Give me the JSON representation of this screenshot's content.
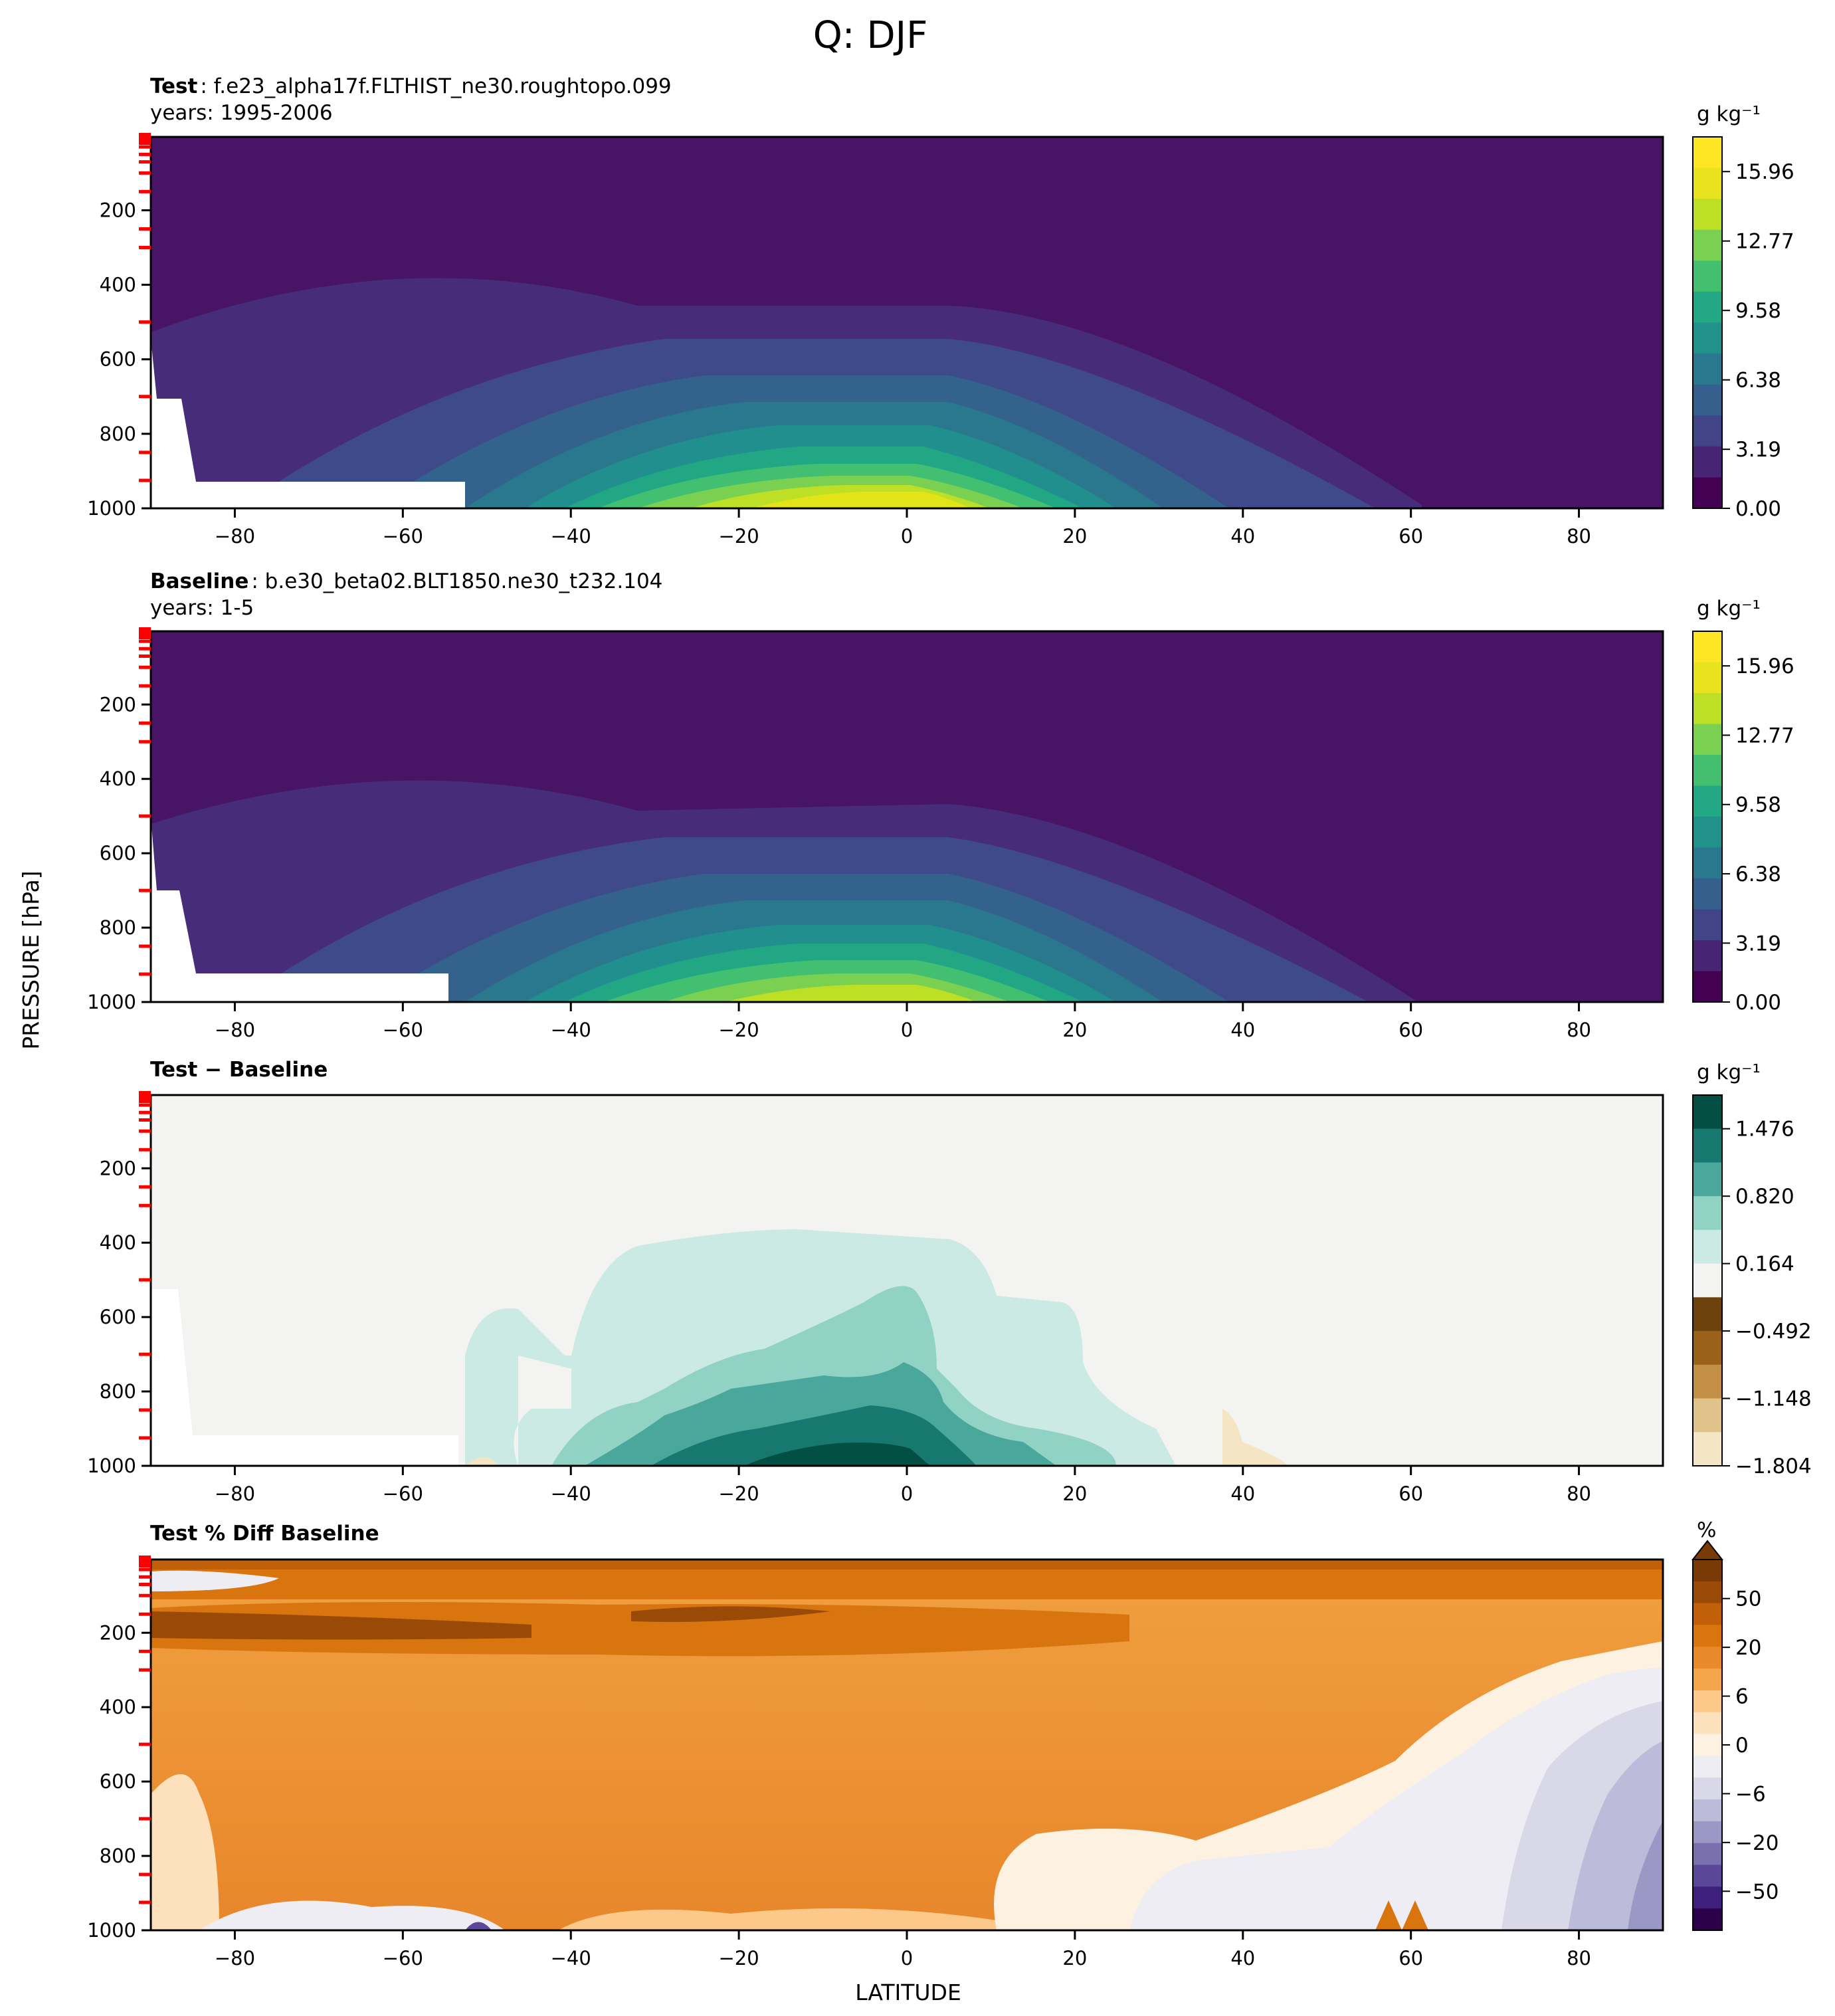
{
  "figure": {
    "title": "Q: DJF",
    "xlabel": "LATITUDE",
    "ylabel": "PRESSURE [hPa]"
  },
  "chart_data": [
    {
      "type": "heatmap",
      "panel": "test",
      "title_bold": "Test",
      "title_rest": ": f.e23_alpha17f.FLTHIST_ne30.roughtopo.099",
      "subtitle": "years: 1995-2006",
      "xlabel": "LATITUDE",
      "ylabel": "PRESSURE [hPa]",
      "xlim": [
        -90,
        90
      ],
      "ylim": [
        1000,
        3
      ],
      "x_ticks": [
        "−80",
        "−60",
        "−40",
        "−20",
        "0",
        "20",
        "40",
        "60",
        "80"
      ],
      "y_ticks": [
        "200",
        "400",
        "600",
        "800",
        "1000"
      ],
      "colormap": "viridis",
      "colorbar_unit": "g kg⁻¹",
      "colorbar_ticks": [
        "15.96",
        "12.77",
        "9.58",
        "6.38",
        "3.19",
        "0.00"
      ],
      "levels": [
        0,
        1.6,
        3.19,
        4.79,
        6.38,
        7.98,
        9.58,
        11.17,
        12.77,
        14.37,
        15.96,
        17.56
      ],
      "peak": {
        "lat": 0,
        "pressure": 1000,
        "value": 16.5
      }
    },
    {
      "type": "heatmap",
      "panel": "baseline",
      "title_bold": "Baseline",
      "title_rest": ": b.e30_beta02.BLT1850.ne30_t232.104",
      "subtitle": "years: 1-5",
      "xlabel": "LATITUDE",
      "ylabel": "PRESSURE [hPa]",
      "xlim": [
        -90,
        90
      ],
      "ylim": [
        1000,
        3
      ],
      "x_ticks": [
        "−80",
        "−60",
        "−40",
        "−20",
        "0",
        "20",
        "40",
        "60",
        "80"
      ],
      "y_ticks": [
        "200",
        "400",
        "600",
        "800",
        "1000"
      ],
      "colormap": "viridis",
      "colorbar_unit": "g kg⁻¹",
      "colorbar_ticks": [
        "15.96",
        "12.77",
        "9.58",
        "6.38",
        "3.19",
        "0.00"
      ],
      "levels": [
        0,
        1.6,
        3.19,
        4.79,
        6.38,
        7.98,
        9.58,
        11.17,
        12.77,
        14.37,
        15.96,
        17.56
      ],
      "peak": {
        "lat": 0,
        "pressure": 1000,
        "value": 15.5
      }
    },
    {
      "type": "heatmap",
      "panel": "difference",
      "title_bold": "Test − Baseline",
      "xlabel": "LATITUDE",
      "ylabel": "PRESSURE [hPa]",
      "xlim": [
        -90,
        90
      ],
      "ylim": [
        1000,
        3
      ],
      "x_ticks": [
        "−80",
        "−60",
        "−40",
        "−20",
        "0",
        "20",
        "40",
        "60",
        "80"
      ],
      "y_ticks": [
        "200",
        "400",
        "600",
        "800",
        "1000"
      ],
      "colormap": "BrBG",
      "colorbar_unit": "g kg⁻¹",
      "colorbar_ticks": [
        "1.476",
        "0.820",
        "0.164",
        "−0.492",
        "−1.148",
        "−1.804"
      ],
      "peak": {
        "lat": -5,
        "pressure": 1000,
        "value": 1.6
      }
    },
    {
      "type": "heatmap",
      "panel": "percent_difference",
      "title_bold": "Test % Diff Baseline",
      "xlabel": "LATITUDE",
      "ylabel": "PRESSURE [hPa]",
      "xlim": [
        -90,
        90
      ],
      "ylim": [
        1000,
        3
      ],
      "x_ticks": [
        "−80",
        "−60",
        "−40",
        "−20",
        "0",
        "20",
        "40",
        "60",
        "80"
      ],
      "y_ticks": [
        "200",
        "400",
        "600",
        "800",
        "1000"
      ],
      "colormap": "PuOr_r",
      "colorbar_unit": "%",
      "colorbar_ticks": [
        "50",
        "20",
        "6",
        "0",
        "−6",
        "−20",
        "−50"
      ],
      "colorbar_extend": "max"
    }
  ],
  "colors": {
    "viridis": [
      "#440154",
      "#482475",
      "#414487",
      "#355f8d",
      "#2a788e",
      "#21918c",
      "#22a884",
      "#44bf70",
      "#7ad151",
      "#bddf26",
      "#e8e31e",
      "#fde725"
    ],
    "brbg_neg": [
      "#6e420c",
      "#9a6219",
      "#c38f45",
      "#dfc38a",
      "#f4e6c4"
    ],
    "brbg_pos": [
      "#f3f4f2",
      "#cceae4",
      "#90d2c4",
      "#4aa79b",
      "#17786f",
      "#034f43"
    ],
    "pct_pos": [
      "#fdf1e2",
      "#fde0bc",
      "#fcc98a",
      "#f5a64a",
      "#e88a2a",
      "#d9750f",
      "#c2600a",
      "#9a4a07",
      "#7a3a05"
    ],
    "pct_neg": [
      "#ededf3",
      "#d8d8e8",
      "#bcbbd9",
      "#9c98c5",
      "#7a70ad",
      "#5b4797",
      "#3f1f7d",
      "#2d004b"
    ],
    "red_tick": "#ff0000"
  }
}
